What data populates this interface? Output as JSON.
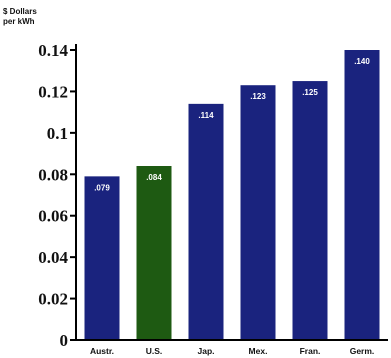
{
  "chart_data": {
    "type": "bar",
    "unit_label_line1": "$ Dollars",
    "unit_label_line2": "per kWh",
    "categories": [
      "Austr.",
      "U.S.",
      "Jap.",
      "Mex.",
      "Fran.",
      "Germ."
    ],
    "values": [
      0.079,
      0.084,
      0.114,
      0.123,
      0.125,
      0.14
    ],
    "value_labels": [
      ".079",
      ".084",
      ".114",
      ".123",
      ".125",
      ".140"
    ],
    "bar_colors": [
      "#1a237e",
      "#1e5a12",
      "#1a237e",
      "#1a237e",
      "#1a237e",
      "#1a237e"
    ],
    "ylim": [
      0,
      0.14
    ],
    "y_ticks": [
      0,
      0.02,
      0.04,
      0.06,
      0.08,
      0.1,
      0.12,
      0.14
    ],
    "y_tick_labels": [
      "0",
      "0.02",
      "0.04",
      "0.06",
      "0.08",
      "0.1",
      "0.12",
      "0.14"
    ],
    "grid": false,
    "legend": "none"
  }
}
